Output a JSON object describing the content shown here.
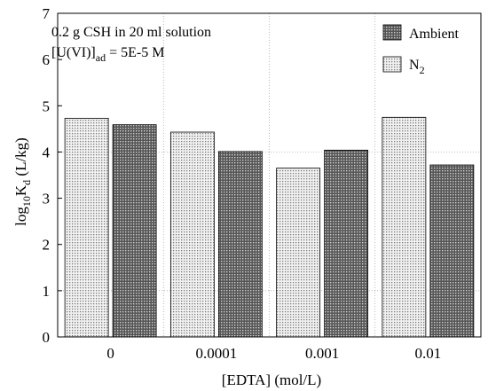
{
  "chart_data": {
    "type": "bar",
    "categories": [
      "0",
      "0.0001",
      "0.001",
      "0.01"
    ],
    "series": [
      {
        "name": "N2",
        "values": [
          4.73,
          4.43,
          3.65,
          4.75
        ],
        "color": "#d8d8d8",
        "pattern": "light-dots"
      },
      {
        "name": "Ambient",
        "values": [
          4.59,
          4.01,
          4.04,
          3.72
        ],
        "color": "#606060",
        "pattern": "dark-dots"
      }
    ],
    "xlabel": "[EDTA] (mol/L)",
    "ylabel": {
      "base": "log",
      "base_sub": "10",
      "main": "K",
      "main_sub": "d",
      "unit": " (L/kg)"
    },
    "ylim": [
      0,
      7
    ],
    "yticks": [
      "0",
      "1",
      "2",
      "3",
      "4",
      "5",
      "6",
      "7"
    ],
    "grid": "horizontal dotted at 1 and 4, vertical dotted between groups",
    "legend_placement": "top-right",
    "legend": [
      {
        "label": "Ambient",
        "sub": ""
      },
      {
        "label": "N",
        "sub": "2"
      }
    ],
    "annotations": {
      "line1": "0.2 g CSH in 20 ml solution",
      "line2_pre": "[U(VI)]",
      "line2_sub": "ad",
      "line2_post": " = 5E-5 M"
    }
  }
}
